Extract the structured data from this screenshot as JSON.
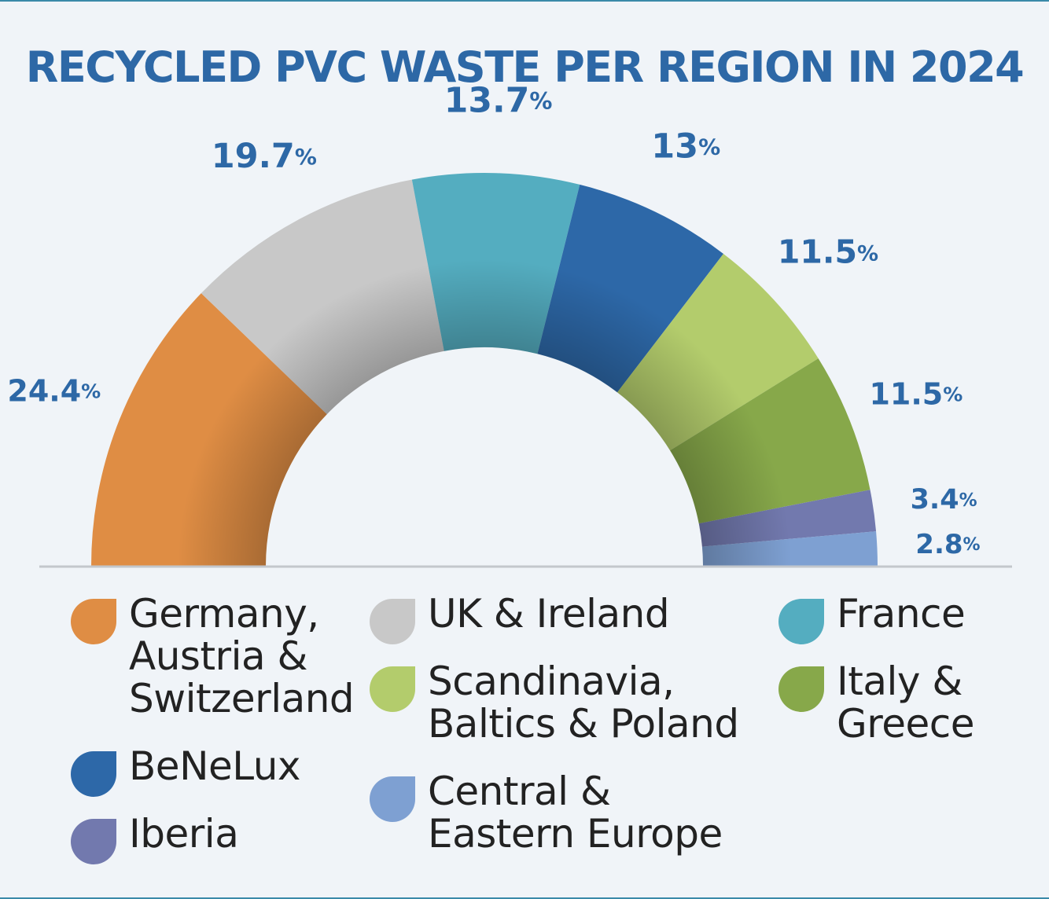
{
  "chart_data": {
    "type": "pie",
    "subtype": "half-donut",
    "title": "RECYCLED PVC WASTE PER REGION IN 2024",
    "unit": "%",
    "slices": [
      {
        "name": "Germany,\nAustria &\nSwitzerland",
        "value": 24.4,
        "value_text": "24.4",
        "color": "#df8d44"
      },
      {
        "name": "UK & Ireland",
        "value": 19.7,
        "value_text": "19.7",
        "color": "#c8c8c8"
      },
      {
        "name": "France",
        "value": 13.7,
        "value_text": "13.7",
        "color": "#54adc0"
      },
      {
        "name": "BeNeLux",
        "value": 13,
        "value_text": "13",
        "color": "#2d68a8"
      },
      {
        "name": "Scandinavia,\nBaltics & Poland",
        "value": 11.5,
        "value_text": "11.5",
        "color": "#b3cc6c"
      },
      {
        "name": "Italy &\nGreece",
        "value": 11.5,
        "value_text": "11.5",
        "color": "#87a84a"
      },
      {
        "name": "Iberia",
        "value": 3.4,
        "value_text": "3.4",
        "color": "#7279ae"
      },
      {
        "name": "Central &\nEastern Europe",
        "value": 2.8,
        "value_text": "2.8",
        "color": "#7ea0d2"
      }
    ],
    "legend_position": "bottom"
  }
}
